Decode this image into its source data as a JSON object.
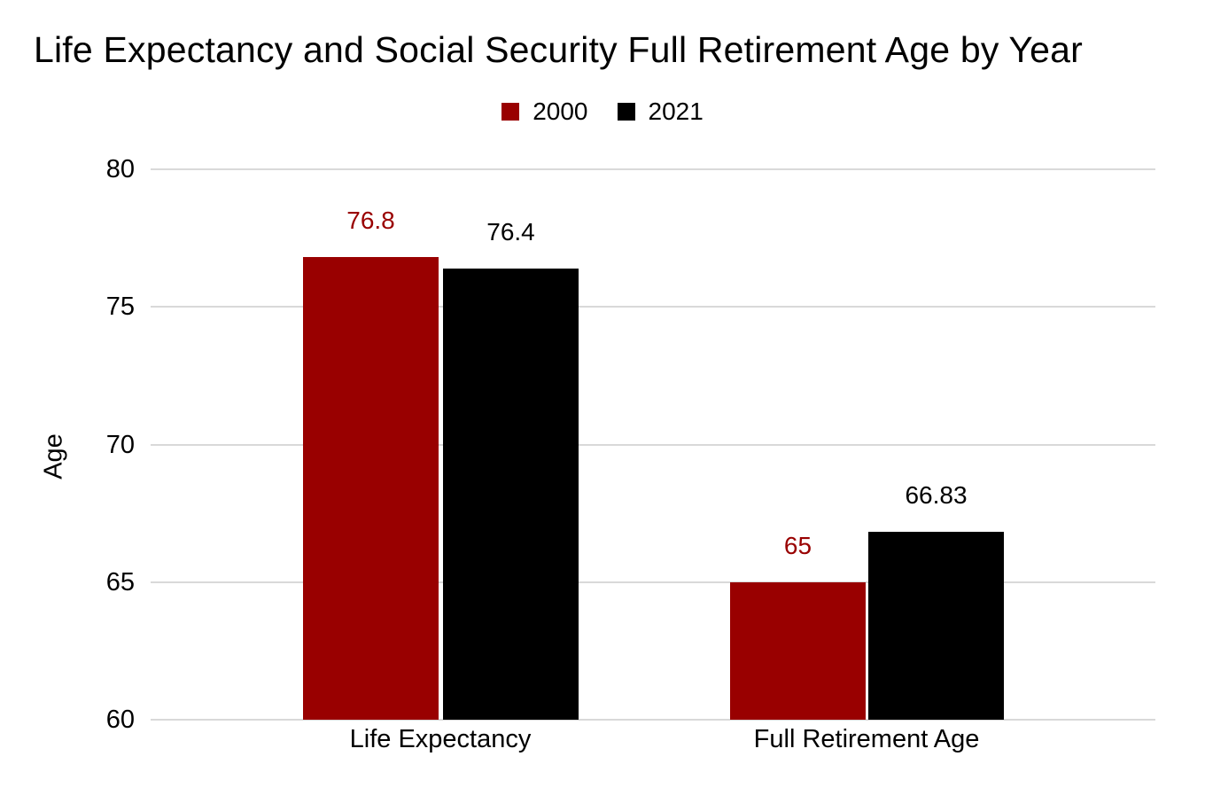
{
  "chart_data": {
    "type": "bar",
    "title": "Life Expectancy and Social Security Full Retirement Age by Year",
    "categories": [
      "Life Expectancy",
      "Full Retirement Age"
    ],
    "series": [
      {
        "name": "2000",
        "color": "#990000",
        "values": [
          76.8,
          65
        ]
      },
      {
        "name": "2021",
        "color": "#000000",
        "values": [
          76.4,
          66.83
        ]
      }
    ],
    "xlabel": "",
    "ylabel": "Age",
    "ylim": [
      60,
      80
    ],
    "yticks": [
      80,
      75,
      70,
      65,
      60
    ],
    "grid": true,
    "legend_position": "top",
    "colors": {
      "background": "#ffffff",
      "gridline": "#d9d9d9",
      "text": "#000000"
    }
  }
}
